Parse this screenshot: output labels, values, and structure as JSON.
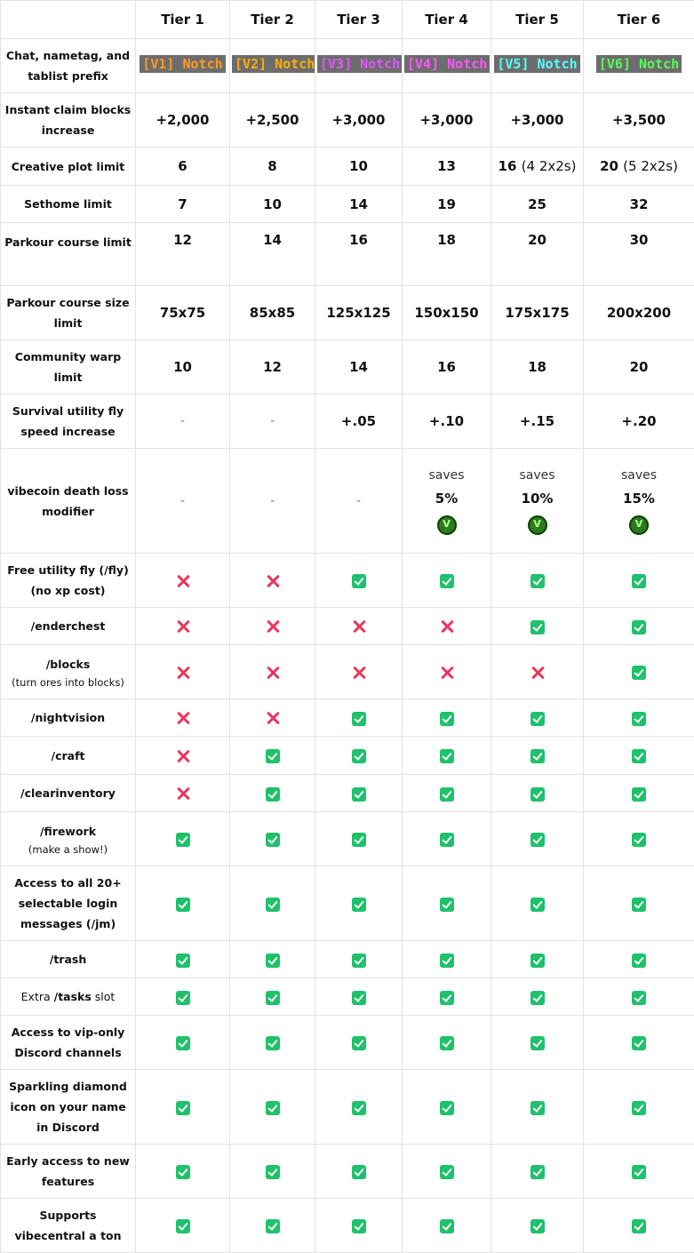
{
  "header": {
    "corner": "",
    "tiers": [
      "Tier 1",
      "Tier 2",
      "Tier 3",
      "Tier 4",
      "Tier 5",
      "Tier 6"
    ]
  },
  "colors": {
    "check": "#1fc16b",
    "cross": "#e8365d"
  },
  "prefix": {
    "label": "Chat, nametag, and tablist prefix",
    "items": [
      {
        "text": "[V1] Notch",
        "color": "#ff9a1f"
      },
      {
        "text": "[V2] Notch",
        "color": "#ffae00"
      },
      {
        "text": "[V3] Notch",
        "color": "#e055ff"
      },
      {
        "text": "[V4] Notch",
        "color": "#ff55ff"
      },
      {
        "text": "[V5] Notch",
        "color": "#55ffff"
      },
      {
        "text": "[V6] Notch",
        "color": "#55ff55"
      }
    ]
  },
  "claim": {
    "label": "Instant claim blocks increase",
    "values": [
      "+2,000",
      "+2,500",
      "+3,000",
      "+3,000",
      "+3,000",
      "+3,500"
    ]
  },
  "creative": {
    "label": "Creative plot limit",
    "values": [
      "6",
      "8",
      "10",
      "13",
      "16",
      "20"
    ],
    "notes": [
      "",
      "",
      "",
      "",
      "(4 2x2s)",
      "(5 2x2s)"
    ]
  },
  "sethome": {
    "label": "Sethome limit",
    "values": [
      "7",
      "10",
      "14",
      "19",
      "25",
      "32"
    ]
  },
  "parkour": {
    "label": "Parkour course limit",
    "values": [
      "12",
      "14",
      "16",
      "18",
      "20",
      "30"
    ]
  },
  "parkour_size": {
    "label": "Parkour course size limit",
    "values": [
      "75x75",
      "85x85",
      "125x125",
      "150x150",
      "175x175",
      "200x200"
    ]
  },
  "warp": {
    "label": "Community warp limit",
    "values": [
      "10",
      "12",
      "14",
      "16",
      "18",
      "20"
    ]
  },
  "flyspeed": {
    "label": "Survival utility fly speed increase",
    "values": [
      "-",
      "-",
      "+.05",
      "+.10",
      "+.15",
      "+.20"
    ]
  },
  "deathloss": {
    "label": "vibecoin death loss modifier",
    "dash": "-",
    "saves": "saves",
    "values": [
      "5%",
      "10%",
      "15%"
    ],
    "icon": "vibecoin-icon"
  },
  "features": [
    {
      "label": "Free utility fly (/fly) (no xp cost)",
      "sub": "",
      "values": [
        false,
        false,
        true,
        true,
        true,
        true
      ]
    },
    {
      "label": "/enderchest",
      "sub": "",
      "values": [
        false,
        false,
        false,
        false,
        true,
        true
      ]
    },
    {
      "label": "/blocks",
      "sub": "(turn ores into blocks)",
      "values": [
        false,
        false,
        false,
        false,
        false,
        true
      ]
    },
    {
      "label": "/nightvision",
      "sub": "",
      "values": [
        false,
        false,
        true,
        true,
        true,
        true
      ]
    },
    {
      "label": "/craft",
      "sub": "",
      "values": [
        false,
        true,
        true,
        true,
        true,
        true
      ]
    },
    {
      "label": "/clearinventory",
      "sub": "",
      "values": [
        false,
        true,
        true,
        true,
        true,
        true
      ]
    },
    {
      "label": "/firework",
      "sub": "(make a show!)",
      "values": [
        true,
        true,
        true,
        true,
        true,
        true
      ]
    },
    {
      "label": "Access to all 20+ selectable login messages (/jm)",
      "sub": "",
      "values": [
        true,
        true,
        true,
        true,
        true,
        true
      ]
    },
    {
      "label": "/trash",
      "sub": "",
      "values": [
        true,
        true,
        true,
        true,
        true,
        true
      ]
    },
    {
      "label_pre": "Extra ",
      "label": "/tasks",
      "label_post": " slot",
      "sub": "",
      "values": [
        true,
        true,
        true,
        true,
        true,
        true
      ]
    },
    {
      "label": "Access to vip-only Discord channels",
      "sub": "",
      "values": [
        true,
        true,
        true,
        true,
        true,
        true
      ]
    },
    {
      "label": "Sparkling diamond icon on your name in Discord",
      "sub": "",
      "values": [
        true,
        true,
        true,
        true,
        true,
        true
      ]
    },
    {
      "label": "Early access to new features",
      "sub": "",
      "values": [
        true,
        true,
        true,
        true,
        true,
        true
      ]
    },
    {
      "label": "Supports vibecentral a ton",
      "sub": "",
      "values": [
        true,
        true,
        true,
        true,
        true,
        true
      ]
    }
  ]
}
